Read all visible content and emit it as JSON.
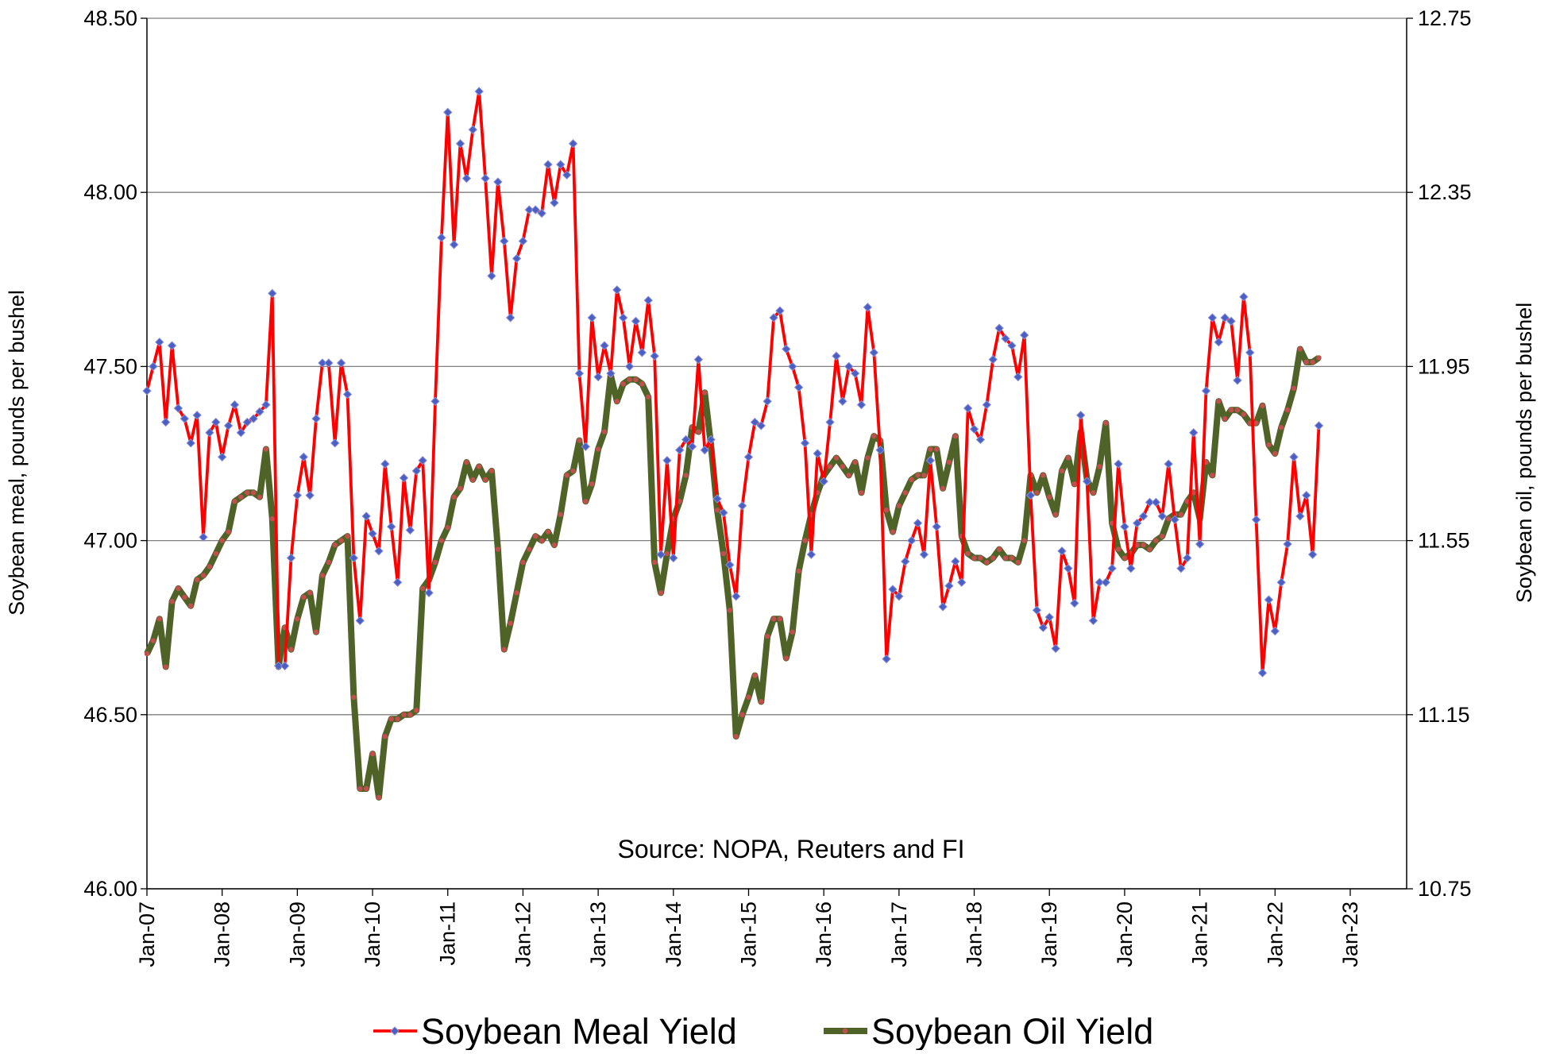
{
  "chart_data": {
    "type": "line",
    "y_label": "Soybean meal, pounds per bushel",
    "y2_label": "Soybean oil, pounds per bushel",
    "annotation": "Source: NOPA, Reuters and FI",
    "x": [
      "2007-01",
      "2007-02",
      "2007-03",
      "2007-04",
      "2007-05",
      "2007-06",
      "2007-07",
      "2007-08",
      "2007-09",
      "2007-10",
      "2007-11",
      "2007-12",
      "2008-01",
      "2008-02",
      "2008-03",
      "2008-04",
      "2008-05",
      "2008-06",
      "2008-07",
      "2008-08",
      "2008-09",
      "2008-10",
      "2008-11",
      "2008-12",
      "2009-01",
      "2009-02",
      "2009-03",
      "2009-04",
      "2009-05",
      "2009-06",
      "2009-07",
      "2009-08",
      "2009-09",
      "2009-10",
      "2009-11",
      "2009-12",
      "2010-01",
      "2010-02",
      "2010-03",
      "2010-04",
      "2010-05",
      "2010-06",
      "2010-07",
      "2010-08",
      "2010-09",
      "2010-10",
      "2010-11",
      "2010-12",
      "2011-01",
      "2011-02",
      "2011-03",
      "2011-04",
      "2011-05",
      "2011-06",
      "2011-07",
      "2011-08",
      "2011-09",
      "2011-10",
      "2011-11",
      "2011-12",
      "2012-01",
      "2012-02",
      "2012-03",
      "2012-04",
      "2012-05",
      "2012-06",
      "2012-07",
      "2012-08",
      "2012-09",
      "2012-10",
      "2012-11",
      "2012-12",
      "2013-01",
      "2013-02",
      "2013-03",
      "2013-04",
      "2013-05",
      "2013-06",
      "2013-07",
      "2013-08",
      "2013-09",
      "2013-10",
      "2013-11",
      "2013-12",
      "2014-01",
      "2014-02",
      "2014-03",
      "2014-04",
      "2014-05",
      "2014-06",
      "2014-07",
      "2014-08",
      "2014-09",
      "2014-10",
      "2014-11",
      "2014-12",
      "2015-01",
      "2015-02",
      "2015-03",
      "2015-04",
      "2015-05",
      "2015-06",
      "2015-07",
      "2015-08",
      "2015-09",
      "2015-10",
      "2015-11",
      "2015-12",
      "2016-01",
      "2016-02",
      "2016-03",
      "2016-04",
      "2016-05",
      "2016-06",
      "2016-07",
      "2016-08",
      "2016-09",
      "2016-10",
      "2016-11",
      "2016-12",
      "2017-01",
      "2017-02",
      "2017-03",
      "2017-04",
      "2017-05",
      "2017-06",
      "2017-07",
      "2017-08",
      "2017-09",
      "2017-10",
      "2017-11",
      "2017-12",
      "2018-01",
      "2018-02",
      "2018-03",
      "2018-04",
      "2018-05",
      "2018-06",
      "2018-07",
      "2018-08",
      "2018-09",
      "2018-10",
      "2018-11",
      "2018-12",
      "2019-01",
      "2019-02",
      "2019-03",
      "2019-04",
      "2019-05",
      "2019-06",
      "2019-07",
      "2019-08",
      "2019-09",
      "2019-10",
      "2019-11",
      "2019-12",
      "2020-01",
      "2020-02",
      "2020-03",
      "2020-04",
      "2020-05",
      "2020-06",
      "2020-07",
      "2020-08",
      "2020-09",
      "2020-10",
      "2020-11",
      "2020-12",
      "2021-01",
      "2021-02",
      "2021-03",
      "2021-04",
      "2021-05",
      "2021-06",
      "2021-07",
      "2021-08",
      "2021-09",
      "2021-10",
      "2021-11",
      "2021-12",
      "2022-01",
      "2022-02",
      "2022-03",
      "2022-04",
      "2022-05",
      "2022-06",
      "2022-07",
      "2022-08"
    ],
    "series": [
      {
        "name": "Soybean Meal Yield",
        "color": "#ff0000",
        "marker_color": "#4a5fc1",
        "marker": "diamond",
        "values": [
          47.43,
          47.5,
          47.57,
          47.34,
          47.56,
          47.38,
          47.35,
          47.28,
          47.36,
          47.01,
          47.31,
          47.34,
          47.24,
          47.33,
          47.39,
          47.31,
          47.34,
          47.35,
          47.37,
          47.39,
          47.71,
          46.64,
          46.64,
          46.95,
          47.13,
          47.24,
          47.13,
          47.35,
          47.51,
          47.51,
          47.28,
          47.51,
          47.42,
          46.95,
          46.77,
          47.07,
          47.02,
          46.97,
          47.22,
          47.04,
          46.88,
          47.18,
          47.03,
          47.2,
          47.23,
          46.85,
          47.4,
          47.87,
          48.23,
          47.85,
          48.14,
          48.04,
          48.18,
          48.29,
          48.04,
          47.76,
          48.03,
          47.86,
          47.64,
          47.81,
          47.86,
          47.95,
          47.95,
          47.94,
          48.08,
          47.97,
          48.08,
          48.05,
          48.14,
          47.48,
          47.27,
          47.64,
          47.47,
          47.56,
          47.48,
          47.72,
          47.64,
          47.5,
          47.63,
          47.54,
          47.69,
          47.53,
          46.96,
          47.23,
          46.95,
          47.26,
          47.29,
          47.27,
          47.52,
          47.26,
          47.29,
          47.12,
          47.08,
          46.93,
          46.84,
          47.1,
          47.24,
          47.34,
          47.33,
          47.4,
          47.64,
          47.66,
          47.55,
          47.5,
          47.44,
          47.28,
          46.96,
          47.25,
          47.17,
          47.34,
          47.53,
          47.4,
          47.5,
          47.48,
          47.39,
          47.67,
          47.54,
          47.26,
          46.66,
          46.86,
          46.84,
          46.94,
          47.0,
          47.05,
          46.96,
          47.23,
          47.04,
          46.81,
          46.87,
          46.94,
          46.88,
          47.38,
          47.32,
          47.29,
          47.39,
          47.52,
          47.61,
          47.58,
          47.56,
          47.47,
          47.59,
          47.13,
          46.8,
          46.75,
          46.78,
          46.69,
          46.97,
          46.92,
          46.82,
          47.36,
          47.17,
          46.77,
          46.88,
          46.88,
          46.92,
          47.22,
          47.04,
          46.92,
          47.05,
          47.07,
          47.11,
          47.11,
          47.07,
          47.22,
          47.06,
          46.92,
          46.95,
          47.31,
          46.99,
          47.43,
          47.64,
          47.57,
          47.64,
          47.63,
          47.46,
          47.7,
          47.54,
          47.06,
          46.62,
          46.83,
          46.74,
          46.88,
          46.99,
          47.24,
          47.07,
          47.13,
          46.96,
          47.33
        ]
      },
      {
        "name": "Soybean Oil Yield",
        "color": "#4f6228",
        "marker_color": "#c0504d",
        "marker": "circle",
        "axis": "y2",
        "values": [
          11.29,
          11.32,
          11.37,
          11.26,
          11.41,
          11.44,
          11.42,
          11.4,
          11.46,
          11.47,
          11.49,
          11.52,
          11.55,
          11.57,
          11.64,
          11.65,
          11.66,
          11.66,
          11.65,
          11.76,
          11.6,
          11.26,
          11.35,
          11.3,
          11.37,
          11.42,
          11.43,
          11.34,
          11.47,
          11.5,
          11.54,
          11.55,
          11.56,
          11.19,
          10.98,
          10.98,
          11.06,
          10.96,
          11.1,
          11.14,
          11.14,
          11.15,
          11.15,
          11.16,
          11.44,
          11.46,
          11.5,
          11.55,
          11.58,
          11.65,
          11.67,
          11.73,
          11.69,
          11.72,
          11.69,
          11.71,
          11.53,
          11.3,
          11.36,
          11.43,
          11.5,
          11.53,
          11.56,
          11.55,
          11.57,
          11.54,
          11.61,
          11.7,
          11.71,
          11.78,
          11.64,
          11.68,
          11.76,
          11.8,
          11.93,
          11.87,
          11.91,
          11.92,
          11.92,
          11.91,
          11.88,
          11.5,
          11.43,
          11.52,
          11.6,
          11.64,
          11.7,
          11.81,
          11.8,
          11.89,
          11.77,
          11.62,
          11.52,
          11.39,
          11.1,
          11.15,
          11.19,
          11.24,
          11.18,
          11.33,
          11.37,
          11.37,
          11.28,
          11.34,
          11.48,
          11.55,
          11.61,
          11.66,
          11.7,
          11.72,
          11.74,
          11.72,
          11.7,
          11.73,
          11.66,
          11.74,
          11.79,
          11.78,
          11.62,
          11.57,
          11.63,
          11.66,
          11.69,
          11.7,
          11.7,
          11.76,
          11.76,
          11.67,
          11.73,
          11.79,
          11.56,
          11.52,
          11.51,
          11.51,
          11.5,
          11.51,
          11.53,
          11.51,
          11.51,
          11.5,
          11.55,
          11.7,
          11.66,
          11.7,
          11.65,
          11.61,
          11.71,
          11.74,
          11.68,
          11.8,
          11.69,
          11.66,
          11.72,
          11.82,
          11.59,
          11.53,
          11.51,
          11.52,
          11.54,
          11.54,
          11.53,
          11.55,
          11.56,
          11.6,
          11.61,
          11.61,
          11.64,
          11.66,
          11.6,
          11.73,
          11.7,
          11.87,
          11.83,
          11.85,
          11.85,
          11.84,
          11.82,
          11.82,
          11.86,
          11.77,
          11.75,
          11.81,
          11.85,
          11.9,
          11.99,
          11.96,
          11.96,
          11.97
        ]
      }
    ],
    "xlim": [
      "2007-01",
      "2023-10"
    ],
    "xticks": [
      {
        "value": "2007-01",
        "label": "Jan-07"
      },
      {
        "value": "2008-01",
        "label": "Jan-08"
      },
      {
        "value": "2009-01",
        "label": "Jan-09"
      },
      {
        "value": "2010-01",
        "label": "Jan-10"
      },
      {
        "value": "2011-01",
        "label": "Jan-11"
      },
      {
        "value": "2012-01",
        "label": "Jan-12"
      },
      {
        "value": "2013-01",
        "label": "Jan-13"
      },
      {
        "value": "2014-01",
        "label": "Jan-14"
      },
      {
        "value": "2015-01",
        "label": "Jan-15"
      },
      {
        "value": "2016-01",
        "label": "Jan-16"
      },
      {
        "value": "2017-01",
        "label": "Jan-17"
      },
      {
        "value": "2018-01",
        "label": "Jan-18"
      },
      {
        "value": "2019-01",
        "label": "Jan-19"
      },
      {
        "value": "2020-01",
        "label": "Jan-20"
      },
      {
        "value": "2021-01",
        "label": "Jan-21"
      },
      {
        "value": "2022-01",
        "label": "Jan-22"
      },
      {
        "value": "2023-01",
        "label": "Jan-23"
      }
    ],
    "ylim": [
      46,
      48.5
    ],
    "yticks": [
      {
        "value": 46,
        "label": "46.00"
      },
      {
        "value": 46.5,
        "label": "46.50"
      },
      {
        "value": 47,
        "label": "47.00"
      },
      {
        "value": 47.5,
        "label": "47.50"
      },
      {
        "value": 48,
        "label": "48.00"
      },
      {
        "value": 48.5,
        "label": "48.50"
      }
    ],
    "y2lim": [
      10.75,
      12.75
    ],
    "y2ticks": [
      10.75,
      11.15,
      11.55,
      11.95,
      12.35,
      12.75
    ],
    "grid": true,
    "legend": "bottom"
  }
}
